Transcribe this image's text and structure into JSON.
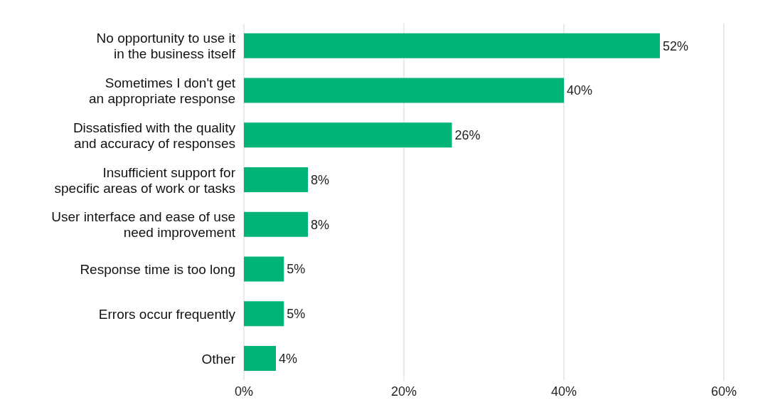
{
  "chart_data": {
    "type": "bar",
    "orientation": "horizontal",
    "categories": [
      "No opportunity to use it\nin the business itself",
      "Sometimes I don't get\nan appropriate response",
      "Dissatisfied with the quality\nand accuracy of responses",
      "Insufficient support for\nspecific areas of work or tasks",
      "User interface and ease of use\nneed improvement",
      "Response time is too long",
      "Errors occur frequently",
      "Other"
    ],
    "values": [
      52,
      40,
      26,
      8,
      8,
      5,
      5,
      4
    ],
    "value_labels": [
      "52%",
      "40%",
      "26%",
      "8%",
      "8%",
      "5%",
      "5%",
      "4%"
    ],
    "color": "#00b377",
    "xlim": [
      0,
      60
    ],
    "xticks": [
      {
        "value": 0,
        "label": "0%"
      },
      {
        "value": 20,
        "label": "20%"
      },
      {
        "value": 40,
        "label": "40%"
      },
      {
        "value": 60,
        "label": "60%"
      }
    ],
    "grid": "x"
  }
}
